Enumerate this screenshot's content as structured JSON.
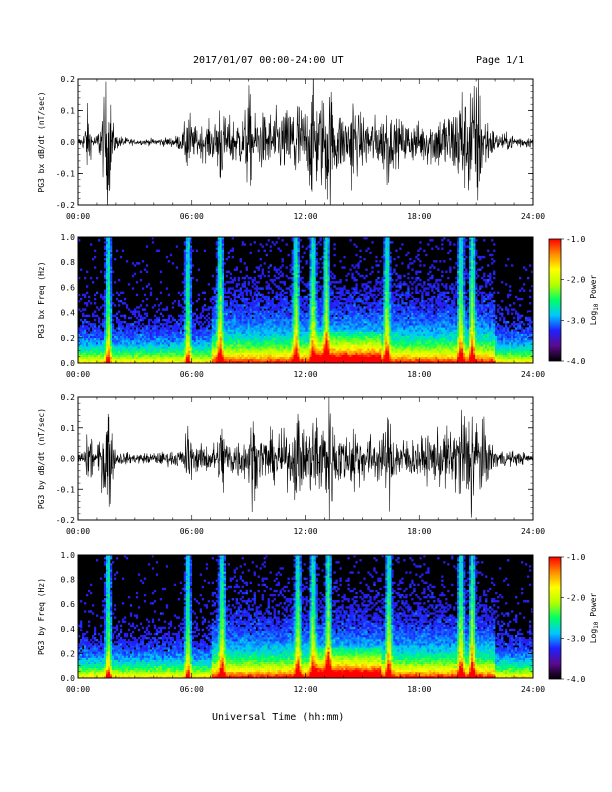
{
  "header": {
    "title": "2017/01/07  00:00-24:00 UT",
    "page": "Page 1/1"
  },
  "footer": {
    "xlabel": "Universal Time (hh:mm)"
  },
  "colorbar": {
    "label": "Log",
    "label_sub": "10",
    "label_rest": " Power",
    "ticks": [
      "-1.0",
      "-2.0",
      "-3.0",
      "-4.0"
    ],
    "range": [
      -4.0,
      -1.0
    ],
    "colors": [
      "#000000",
      "#5a0a8c",
      "#2020ff",
      "#00c8ff",
      "#00ff64",
      "#b4ff00",
      "#ffff00",
      "#ff8c00",
      "#ff0000"
    ]
  },
  "x_ticks": [
    "00:00",
    "06:00",
    "12:00",
    "18:00",
    "24:00"
  ],
  "chart_data": [
    {
      "type": "line",
      "ylabel": "PG3 bx dB/dt (nT/sec)",
      "ylim": [
        -0.2,
        0.2
      ],
      "yticks": [
        "0.2",
        "0.1",
        "0.0",
        "-0.1",
        "-0.2"
      ],
      "xlim_hours": [
        0,
        24
      ],
      "activity_hours": [
        0.5,
        1.6,
        5.8,
        7.5,
        9.0,
        11.5,
        12.4,
        13.2,
        14.5,
        16.3,
        20.2,
        20.7,
        21.1
      ],
      "amplitude_envelope": [
        [
          0,
          0.02
        ],
        [
          1,
          0.03
        ],
        [
          1.5,
          0.2
        ],
        [
          2,
          0.03
        ],
        [
          3,
          0.01
        ],
        [
          5,
          0.02
        ],
        [
          6,
          0.06
        ],
        [
          8,
          0.1
        ],
        [
          10,
          0.12
        ],
        [
          12,
          0.15
        ],
        [
          13,
          0.2
        ],
        [
          14,
          0.12
        ],
        [
          16,
          0.1
        ],
        [
          18,
          0.08
        ],
        [
          20,
          0.15
        ],
        [
          21,
          0.2
        ],
        [
          22,
          0.04
        ],
        [
          24,
          0.02
        ]
      ]
    },
    {
      "type": "heatmap",
      "ylabel": "PG3 bx Freq (Hz)",
      "ylim": [
        0.0,
        1.0
      ],
      "yticks": [
        "1.0",
        "0.8",
        "0.6",
        "0.4",
        "0.2",
        "0.0"
      ],
      "xlim_hours": [
        0,
        24
      ],
      "zrange": [
        -4.0,
        -1.0
      ],
      "bright_bands_hours": [
        1.6,
        5.8,
        7.5,
        11.5,
        12.4,
        13.1,
        16.3,
        20.2,
        20.8
      ]
    },
    {
      "type": "line",
      "ylabel": "PG3 by dB/dt (nT/sec)",
      "ylim": [
        -0.2,
        0.2
      ],
      "yticks": [
        "0.2",
        "0.1",
        "0.0",
        "-0.1",
        "-0.2"
      ],
      "xlim_hours": [
        0,
        24
      ],
      "activity_hours": [
        0.6,
        1.6,
        5.8,
        7.6,
        9.2,
        11.6,
        12.5,
        13.3,
        14.6,
        16.4,
        20.3,
        20.8
      ],
      "amplitude_envelope": [
        [
          0,
          0.03
        ],
        [
          1,
          0.04
        ],
        [
          1.5,
          0.2
        ],
        [
          2,
          0.03
        ],
        [
          3,
          0.02
        ],
        [
          5,
          0.03
        ],
        [
          6,
          0.05
        ],
        [
          8,
          0.08
        ],
        [
          10,
          0.1
        ],
        [
          12,
          0.12
        ],
        [
          13,
          0.18
        ],
        [
          14,
          0.1
        ],
        [
          16,
          0.1
        ],
        [
          18,
          0.08
        ],
        [
          20,
          0.14
        ],
        [
          21,
          0.2
        ],
        [
          22,
          0.04
        ],
        [
          24,
          0.02
        ]
      ]
    },
    {
      "type": "heatmap",
      "ylabel": "PG3 by Freq (Hz)",
      "ylim": [
        0.0,
        1.0
      ],
      "yticks": [
        "1.0",
        "0.8",
        "0.6",
        "0.4",
        "0.2",
        "0.0"
      ],
      "xlim_hours": [
        0,
        24
      ],
      "zrange": [
        -4.0,
        -1.0
      ],
      "bright_bands_hours": [
        1.6,
        5.8,
        7.6,
        11.6,
        12.4,
        13.2,
        16.4,
        20.2,
        20.8
      ]
    }
  ]
}
